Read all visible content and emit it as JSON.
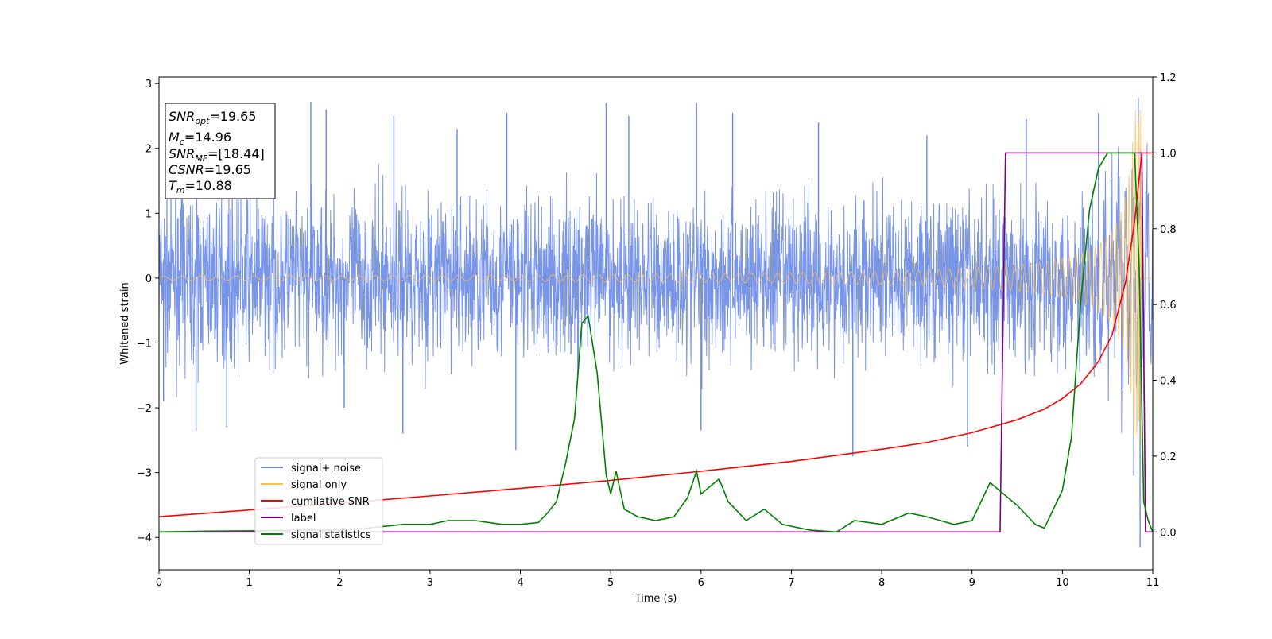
{
  "chart_data": {
    "type": "line",
    "title": "",
    "xlabel": "Time (s)",
    "ylabel": "Whitened strain",
    "xlim": [
      0,
      11
    ],
    "ylim": [
      -4.5,
      3.1
    ],
    "y2lim": [
      -0.1,
      1.2
    ],
    "x_ticks": [
      0,
      1,
      2,
      3,
      4,
      5,
      6,
      7,
      8,
      9,
      10,
      11
    ],
    "y_ticks": [
      3,
      2,
      1,
      0,
      -1,
      -2,
      -3,
      -4
    ],
    "y_tick_labels": [
      "3",
      "2",
      "1",
      "0",
      "−1",
      "−2",
      "−3",
      "−4"
    ],
    "y2_ticks": [
      1.2,
      1.0,
      0.8,
      0.6,
      0.4,
      0.2,
      0.0
    ],
    "y2_tick_labels": [
      "1.2",
      "1.0",
      "0.8",
      "0.6",
      "0.4",
      "0.2",
      "0.0"
    ],
    "grid": false,
    "legend_position": "lower-left",
    "annotation": {
      "snr_opt": {
        "sym": "SNR",
        "sub": "opt",
        "value": "=19.65"
      },
      "mc": {
        "sym": "M",
        "sub": "c",
        "value": "=14.96"
      },
      "snr_mf": {
        "sym": "SNR",
        "sub": "MF",
        "value": "=[18.44]"
      },
      "csnr": {
        "sym": "CSNR",
        "value": "=19.65"
      },
      "tm": {
        "sym": "T",
        "sub": "m",
        "value": "=10.88"
      }
    },
    "series": [
      {
        "name": "signal+ noise",
        "color": "#6a89e6",
        "axis": "left",
        "note": "dense noise time series; amplitude envelope roughly ±1.5 with spikes to +2.78 / −4.15",
        "spikes": [
          [
            0.05,
            -1.9
          ],
          [
            0.41,
            -2.35
          ],
          [
            0.75,
            -2.3
          ],
          [
            1.68,
            2.72
          ],
          [
            1.85,
            2.6
          ],
          [
            2.05,
            -2.0
          ],
          [
            2.6,
            2.5
          ],
          [
            2.7,
            -2.4
          ],
          [
            3.3,
            2.3
          ],
          [
            3.85,
            2.55
          ],
          [
            3.95,
            -2.65
          ],
          [
            4.95,
            2.7
          ],
          [
            5.2,
            2.5
          ],
          [
            5.95,
            2.7
          ],
          [
            6.0,
            -2.35
          ],
          [
            6.35,
            2.55
          ],
          [
            7.3,
            2.4
          ],
          [
            7.68,
            -2.75
          ],
          [
            8.5,
            2.2
          ],
          [
            8.95,
            -2.6
          ],
          [
            9.6,
            2.45
          ],
          [
            10.4,
            2.55
          ],
          [
            10.79,
            -3.05
          ],
          [
            10.84,
            2.78
          ],
          [
            10.86,
            -4.15
          ]
        ]
      },
      {
        "name": "signal only",
        "color": "#ffbf47",
        "axis": "left",
        "note": "chirp, amplitude growing from about 0.03 to about 2.5 at merger time 10.88 s"
      },
      {
        "name": "cumilative SNR",
        "color": "#ff0000",
        "axis": "right",
        "x": [
          0,
          1,
          2,
          3,
          4,
          5,
          6,
          7,
          8,
          8.5,
          9,
          9.5,
          9.8,
          10,
          10.2,
          10.4,
          10.55,
          10.7,
          10.8,
          10.88,
          11
        ],
        "y": [
          0.04,
          0.058,
          0.076,
          0.095,
          0.115,
          0.136,
          0.16,
          0.186,
          0.218,
          0.236,
          0.262,
          0.296,
          0.324,
          0.352,
          0.39,
          0.45,
          0.52,
          0.66,
          0.82,
          1.0,
          1.0
        ]
      },
      {
        "name": "label",
        "color": "#800080",
        "axis": "right",
        "x": [
          0,
          9.31,
          9.37,
          10.88,
          10.92,
          11
        ],
        "y": [
          0,
          0,
          1,
          1,
          0,
          0
        ]
      },
      {
        "name": "signal statistics",
        "color": "#008000",
        "axis": "right",
        "x": [
          0,
          0.5,
          1,
          1.5,
          2,
          2.3,
          2.5,
          2.7,
          3,
          3.2,
          3.5,
          3.8,
          4.0,
          4.2,
          4.3,
          4.4,
          4.5,
          4.6,
          4.68,
          4.75,
          4.85,
          4.95,
          5.0,
          5.06,
          5.15,
          5.3,
          5.5,
          5.7,
          5.85,
          5.95,
          6.0,
          6.1,
          6.2,
          6.3,
          6.5,
          6.7,
          6.9,
          7.2,
          7.5,
          7.7,
          8.0,
          8.3,
          8.5,
          8.8,
          9.0,
          9.1,
          9.2,
          9.3,
          9.5,
          9.7,
          9.8,
          9.9,
          10.0,
          10.1,
          10.2,
          10.3,
          10.4,
          10.5,
          10.7,
          10.8,
          10.85,
          10.9,
          10.95,
          11.0
        ],
        "y": [
          0.0,
          0.002,
          0.003,
          0.005,
          0.005,
          0.01,
          0.015,
          0.02,
          0.02,
          0.03,
          0.03,
          0.02,
          0.02,
          0.025,
          0.05,
          0.08,
          0.18,
          0.3,
          0.55,
          0.57,
          0.42,
          0.15,
          0.1,
          0.16,
          0.06,
          0.04,
          0.03,
          0.04,
          0.09,
          0.16,
          0.1,
          0.12,
          0.14,
          0.08,
          0.03,
          0.06,
          0.02,
          0.005,
          0.0,
          0.03,
          0.02,
          0.05,
          0.04,
          0.02,
          0.03,
          0.08,
          0.13,
          0.11,
          0.07,
          0.02,
          0.01,
          0.06,
          0.11,
          0.25,
          0.6,
          0.85,
          0.96,
          1.0,
          1.0,
          1.0,
          0.7,
          0.08,
          0.03,
          0.0
        ]
      }
    ]
  }
}
